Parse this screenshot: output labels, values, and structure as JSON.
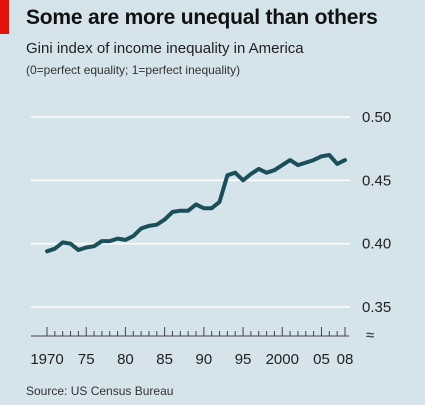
{
  "header": {
    "title": "Some are more unequal than others",
    "subtitle": "Gini index of income inequality in America",
    "note": "(0=perfect equality; 1=perfect inequality)"
  },
  "footer": {
    "source": "Source: US Census Bureau"
  },
  "colors": {
    "background": "#d5e3ea",
    "line": "#1a4f5a",
    "grid": "#ffffff",
    "accent": "#e3120b"
  },
  "chart_data": {
    "type": "line",
    "title": "Some are more unequal than others",
    "xlabel": "",
    "ylabel": "",
    "xlim": [
      1970,
      2008
    ],
    "ylim": [
      0.35,
      0.5
    ],
    "grid": true,
    "y_axis_position": "right",
    "y_ticks": [
      "0.50",
      "0.45",
      "0.40",
      "0.35"
    ],
    "y_tick_values": [
      0.5,
      0.45,
      0.4,
      0.35
    ],
    "x_tick_labels": [
      "1970",
      "75",
      "80",
      "85",
      "90",
      "95",
      "2000",
      "05",
      "08"
    ],
    "x_tick_values": [
      1970,
      1975,
      1980,
      1985,
      1990,
      1995,
      2000,
      2005,
      2008
    ],
    "series": [
      {
        "x": [
          1970,
          1971,
          1972,
          1973,
          1974,
          1975,
          1976,
          1977,
          1978,
          1979,
          1980,
          1981,
          1982,
          1983,
          1984,
          1985,
          1986,
          1987,
          1988,
          1989,
          1990,
          1991,
          1992,
          1993,
          1994,
          1995,
          1996,
          1997,
          1998,
          1999,
          2000,
          2001,
          2002,
          2003,
          2004,
          2005,
          2006,
          2007,
          2008
        ],
        "values": [
          0.394,
          0.396,
          0.401,
          0.4,
          0.395,
          0.397,
          0.398,
          0.402,
          0.402,
          0.404,
          0.403,
          0.406,
          0.412,
          0.414,
          0.415,
          0.419,
          0.425,
          0.426,
          0.426,
          0.431,
          0.428,
          0.428,
          0.433,
          0.454,
          0.456,
          0.45,
          0.455,
          0.459,
          0.456,
          0.458,
          0.462,
          0.466,
          0.462,
          0.464,
          0.466,
          0.469,
          0.47,
          0.463,
          0.466
        ]
      }
    ]
  }
}
